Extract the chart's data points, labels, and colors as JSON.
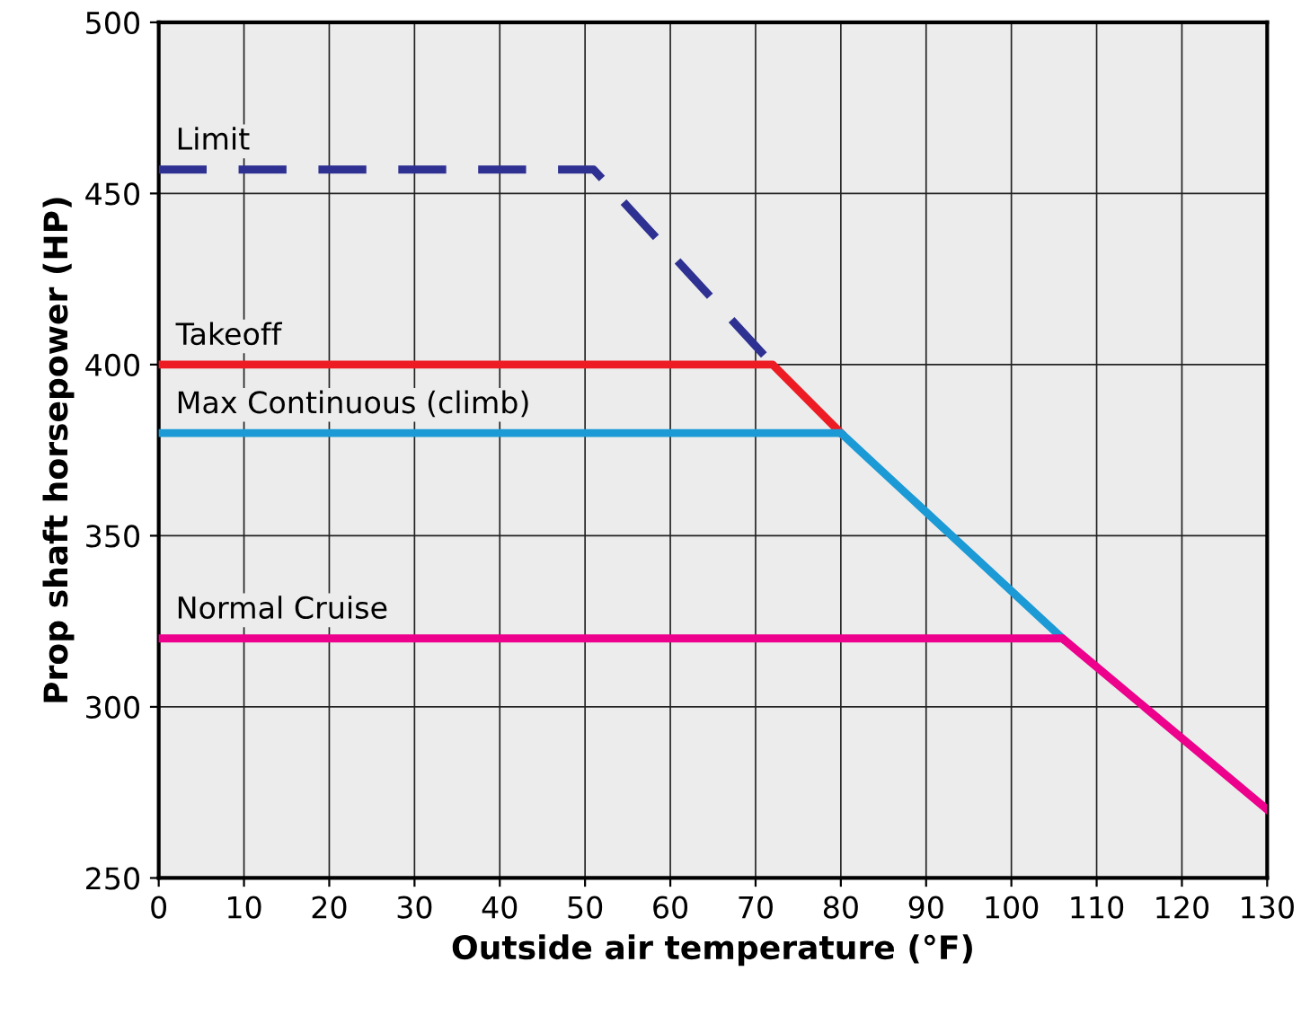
{
  "chart_data": {
    "type": "line",
    "xlabel": "Outside air temperature (°F)",
    "ylabel": "Prop shaft horsepower (HP)",
    "xlim": [
      0,
      130
    ],
    "ylim": [
      250,
      500
    ],
    "xticks": [
      0,
      10,
      20,
      30,
      40,
      50,
      60,
      70,
      80,
      90,
      100,
      110,
      120,
      130
    ],
    "yticks": [
      250,
      300,
      350,
      400,
      450,
      500
    ],
    "grid": true,
    "marker": "none",
    "series": [
      {
        "name": "Limit",
        "color": "#2e3192",
        "line_style": "dashed",
        "x": [
          0,
          51,
          72
        ],
        "values": [
          457,
          457,
          400
        ]
      },
      {
        "name": "Takeoff",
        "color": "#ed1c24",
        "line_style": "solid",
        "x": [
          0,
          72,
          80
        ],
        "values": [
          400,
          400,
          380
        ]
      },
      {
        "name": "Max Continuous (climb)",
        "color": "#1b9ad6",
        "line_style": "solid",
        "x": [
          0,
          80,
          106
        ],
        "values": [
          380,
          380,
          320
        ]
      },
      {
        "name": "Normal Cruise",
        "color": "#ec008c",
        "line_style": "solid",
        "x": [
          0,
          106,
          130
        ],
        "values": [
          320,
          320,
          270
        ]
      }
    ]
  }
}
